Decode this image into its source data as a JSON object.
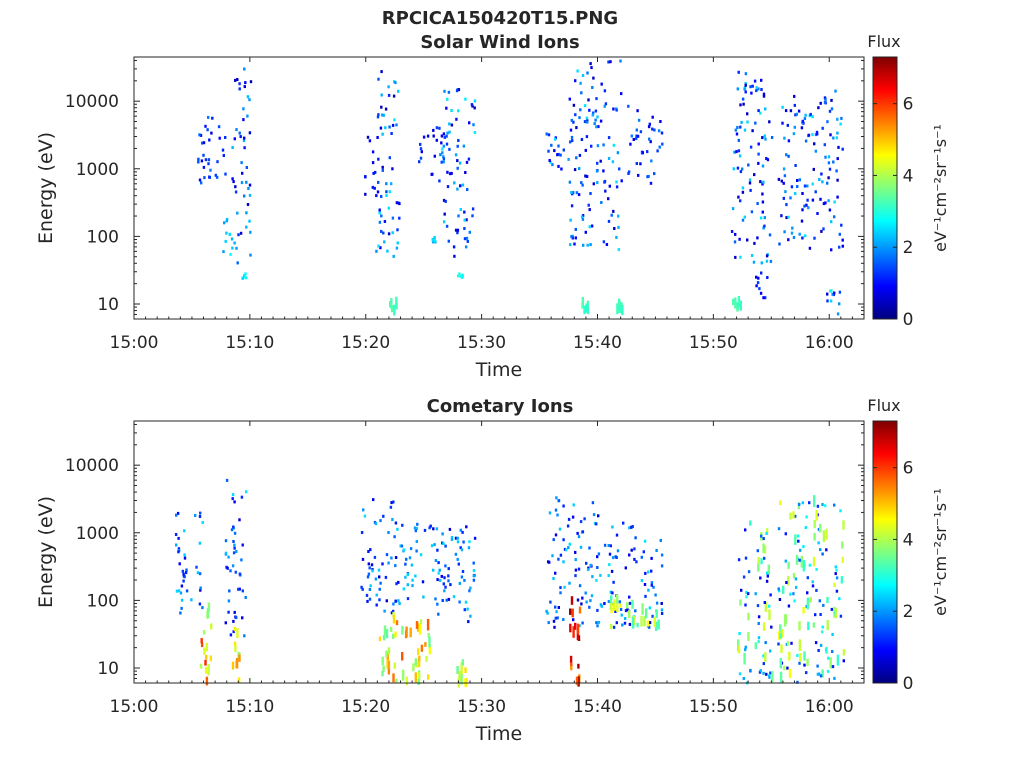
{
  "figure_title": "RPCICA150420T15.PNG",
  "colormap": [
    "#00007f",
    "#0000ff",
    "#007fff",
    "#00ffff",
    "#7fff7f",
    "#ffff00",
    "#ff7f00",
    "#ff0000",
    "#7f0000"
  ],
  "chart_data": [
    {
      "type": "heatmap",
      "title": "Solar Wind Ions",
      "xlabel": "Time",
      "ylabel": "Energy (eV)",
      "x_ticks": [
        "15:00",
        "15:10",
        "15:20",
        "15:30",
        "15:40",
        "15:50",
        "16:00"
      ],
      "x_tick_minutes": [
        0,
        10,
        20,
        30,
        40,
        50,
        60
      ],
      "xlim_minutes": [
        0,
        63
      ],
      "y_ticks": [
        "10",
        "100",
        "1000",
        "10000"
      ],
      "y_tick_values": [
        10,
        100,
        1000,
        10000
      ],
      "ylim": [
        6,
        45000
      ],
      "y_scale": "log",
      "colorbar": {
        "title": "Flux",
        "label": "eV⁻¹cm⁻²sr⁻¹s⁻¹",
        "ticks": [
          "0",
          "2",
          "4",
          "6"
        ],
        "tick_values": [
          0,
          2,
          4,
          6
        ],
        "range": [
          0,
          7.3
        ]
      },
      "clusters": [
        {
          "t_start": 5.4,
          "t_end": 6.2,
          "e_min": 450,
          "e_max": 5000,
          "flux_min": 0.6,
          "flux_max": 1.8
        },
        {
          "t_start": 6.2,
          "t_end": 7.8,
          "e_min": 700,
          "e_max": 6000,
          "flux_min": 0.6,
          "flux_max": 1.8
        },
        {
          "t_start": 7.6,
          "t_end": 8.4,
          "e_min": 40,
          "e_max": 200,
          "flux_min": 2.0,
          "flux_max": 2.8
        },
        {
          "t_start": 8.4,
          "t_end": 10.0,
          "e_min": 40,
          "e_max": 30000,
          "flux_min": 0.4,
          "flux_max": 2.4
        },
        {
          "t_start": 9.2,
          "t_end": 10.0,
          "e_min": 24,
          "e_max": 28,
          "flux_min": 2.4,
          "flux_max": 2.8
        },
        {
          "t_start": 19.8,
          "t_end": 21.0,
          "e_min": 400,
          "e_max": 3000,
          "flux_min": 0.4,
          "flux_max": 1.6
        },
        {
          "t_start": 20.8,
          "t_end": 22.8,
          "e_min": 40,
          "e_max": 30000,
          "flux_min": 0.4,
          "flux_max": 2.6
        },
        {
          "t_start": 22.0,
          "t_end": 22.6,
          "e_min": 8,
          "e_max": 11,
          "flux_min": 3.0,
          "flux_max": 3.4
        },
        {
          "t_start": 24.5,
          "t_end": 26.8,
          "e_min": 600,
          "e_max": 5000,
          "flux_min": 0.6,
          "flux_max": 2.0
        },
        {
          "t_start": 25.6,
          "t_end": 26.0,
          "e_min": 80,
          "e_max": 100,
          "flux_min": 2.0,
          "flux_max": 2.6
        },
        {
          "t_start": 26.5,
          "t_end": 29.4,
          "e_min": 50,
          "e_max": 15000,
          "flux_min": 0.4,
          "flux_max": 2.6
        },
        {
          "t_start": 27.8,
          "t_end": 28.4,
          "e_min": 24,
          "e_max": 28,
          "flux_min": 2.6,
          "flux_max": 3.0
        },
        {
          "t_start": 35.5,
          "t_end": 38.0,
          "e_min": 900,
          "e_max": 4000,
          "flux_min": 0.6,
          "flux_max": 2.6
        },
        {
          "t_start": 37.5,
          "t_end": 42.0,
          "e_min": 60,
          "e_max": 40000,
          "flux_min": 0.4,
          "flux_max": 2.6
        },
        {
          "t_start": 38.6,
          "t_end": 39.2,
          "e_min": 8,
          "e_max": 11,
          "flux_min": 3.0,
          "flux_max": 3.4
        },
        {
          "t_start": 41.6,
          "t_end": 42.2,
          "e_min": 8,
          "e_max": 11,
          "flux_min": 3.0,
          "flux_max": 3.4
        },
        {
          "t_start": 42.5,
          "t_end": 45.5,
          "e_min": 600,
          "e_max": 9000,
          "flux_min": 0.6,
          "flux_max": 2.0
        },
        {
          "t_start": 51.5,
          "t_end": 55.0,
          "e_min": 40,
          "e_max": 30000,
          "flux_min": 0.4,
          "flux_max": 2.6
        },
        {
          "t_start": 53.5,
          "t_end": 54.6,
          "e_min": 12,
          "e_max": 30,
          "flux_min": 0.6,
          "flux_max": 1.4
        },
        {
          "t_start": 51.6,
          "t_end": 52.4,
          "e_min": 8,
          "e_max": 11,
          "flux_min": 3.0,
          "flux_max": 3.4
        },
        {
          "t_start": 55.5,
          "t_end": 61.2,
          "e_min": 60,
          "e_max": 15000,
          "flux_min": 0.4,
          "flux_max": 2.6
        },
        {
          "t_start": 59.6,
          "t_end": 61.0,
          "e_min": 7,
          "e_max": 16,
          "flux_min": 0.6,
          "flux_max": 3.0
        }
      ]
    },
    {
      "type": "heatmap",
      "title": "Cometary Ions",
      "xlabel": "Time",
      "ylabel": "Energy (eV)",
      "x_ticks": [
        "15:00",
        "15:10",
        "15:20",
        "15:30",
        "15:40",
        "15:50",
        "16:00"
      ],
      "x_tick_minutes": [
        0,
        10,
        20,
        30,
        40,
        50,
        60
      ],
      "xlim_minutes": [
        0,
        63
      ],
      "y_ticks": [
        "10",
        "100",
        "1000",
        "10000"
      ],
      "y_tick_values": [
        10,
        100,
        1000,
        10000
      ],
      "ylim": [
        6,
        45000
      ],
      "y_scale": "log",
      "colorbar": {
        "title": "Flux",
        "label": "eV⁻¹cm⁻²sr⁻¹s⁻¹",
        "ticks": [
          "0",
          "2",
          "4",
          "6"
        ],
        "tick_values": [
          0,
          2,
          4,
          6
        ],
        "range": [
          0,
          7.3
        ]
      },
      "clusters": [
        {
          "t_start": 3.5,
          "t_end": 6.0,
          "e_min": 60,
          "e_max": 2000,
          "flux_min": 0.6,
          "flux_max": 2.6
        },
        {
          "t_start": 5.6,
          "t_end": 6.6,
          "e_min": 6,
          "e_max": 80,
          "flux_min": 3.6,
          "flux_max": 6.2
        },
        {
          "t_start": 7.8,
          "t_end": 9.6,
          "e_min": 25,
          "e_max": 6000,
          "flux_min": 0.6,
          "flux_max": 2.6
        },
        {
          "t_start": 8.4,
          "t_end": 9.0,
          "e_min": 6,
          "e_max": 60,
          "flux_min": 3.6,
          "flux_max": 5.4
        },
        {
          "t_start": 19.5,
          "t_end": 22.5,
          "e_min": 60,
          "e_max": 3500,
          "flux_min": 0.6,
          "flux_max": 2.6
        },
        {
          "t_start": 21.0,
          "t_end": 22.6,
          "e_min": 6,
          "e_max": 80,
          "flux_min": 3.0,
          "flux_max": 5.6
        },
        {
          "t_start": 22.5,
          "t_end": 26.8,
          "e_min": 60,
          "e_max": 1400,
          "flux_min": 0.6,
          "flux_max": 2.6
        },
        {
          "t_start": 23.0,
          "t_end": 25.5,
          "e_min": 6,
          "e_max": 60,
          "flux_min": 3.4,
          "flux_max": 5.8
        },
        {
          "t_start": 26.5,
          "t_end": 29.4,
          "e_min": 40,
          "e_max": 1400,
          "flux_min": 0.6,
          "flux_max": 2.6
        },
        {
          "t_start": 27.6,
          "t_end": 28.8,
          "e_min": 6,
          "e_max": 14,
          "flux_min": 3.4,
          "flux_max": 5.0
        },
        {
          "t_start": 35.5,
          "t_end": 40.0,
          "e_min": 40,
          "e_max": 3500,
          "flux_min": 0.6,
          "flux_max": 2.6
        },
        {
          "t_start": 37.4,
          "t_end": 38.4,
          "e_min": 6,
          "e_max": 100,
          "flux_min": 5.0,
          "flux_max": 7.2
        },
        {
          "t_start": 40.0,
          "t_end": 45.5,
          "e_min": 40,
          "e_max": 1400,
          "flux_min": 0.6,
          "flux_max": 2.6
        },
        {
          "t_start": 41.0,
          "t_end": 45.2,
          "e_min": 40,
          "e_max": 120,
          "flux_min": 3.0,
          "flux_max": 4.6
        },
        {
          "t_start": 52.0,
          "t_end": 55.0,
          "e_min": 6,
          "e_max": 1400,
          "flux_min": 0.6,
          "flux_max": 4.4
        },
        {
          "t_start": 55.5,
          "t_end": 61.2,
          "e_min": 6,
          "e_max": 3000,
          "flux_min": 0.6,
          "flux_max": 4.6
        }
      ]
    }
  ]
}
